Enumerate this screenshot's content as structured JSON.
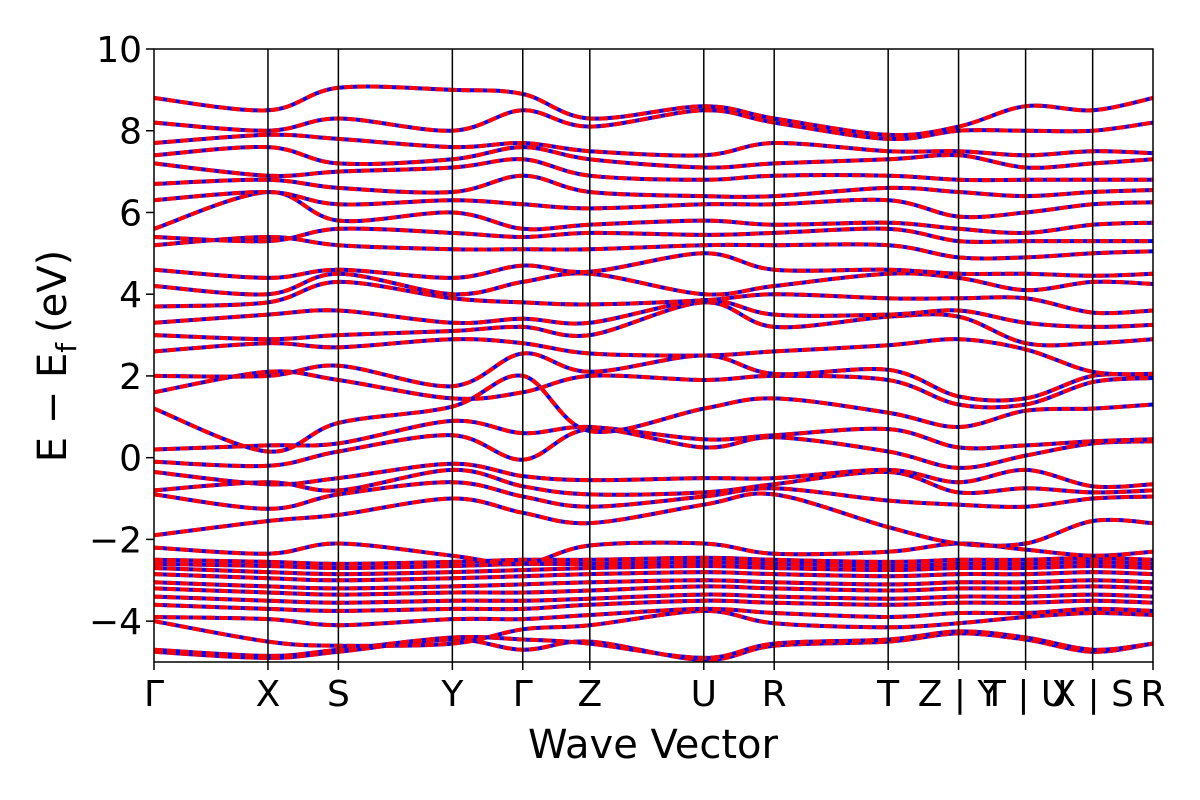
{
  "chart_data": {
    "type": "line",
    "title": "",
    "xlabel": "Wave Vector",
    "ylabel_main": "E − E",
    "ylabel_sub": "f",
    "ylabel_unit": "(eV)",
    "ylim": [
      -5,
      10
    ],
    "yticks": [
      -4,
      -2,
      0,
      2,
      4,
      6,
      8,
      10
    ],
    "ytick_labels": [
      "−4",
      "−2",
      "0",
      "2",
      "4",
      "6",
      "8",
      "10"
    ],
    "xlim": [
      0,
      14.9
    ],
    "kpoints": [
      {
        "label": "Γ",
        "x": 0.0
      },
      {
        "label": "X",
        "x": 1.7
      },
      {
        "label": "S",
        "x": 2.75
      },
      {
        "label": "Y",
        "x": 4.45
      },
      {
        "label": "Γ",
        "x": 5.5
      },
      {
        "label": "Z",
        "x": 6.5
      },
      {
        "label": "U",
        "x": 8.2
      },
      {
        "label": "R",
        "x": 9.25
      },
      {
        "label": "T",
        "x": 10.95
      },
      {
        "label": "Z | Y",
        "x": 12.0
      },
      {
        "label": "T | U",
        "x": 13.0
      },
      {
        "label": "X | S",
        "x": 14.0
      },
      {
        "label": "R",
        "x": 14.9
      }
    ],
    "grid": false,
    "legend": "none",
    "series": [
      {
        "style": "solid",
        "color": "#0000ff"
      },
      {
        "style": "dashed",
        "color": "#ff0000"
      }
    ],
    "bands": [
      [
        -4.75,
        -4.9,
        -4.75,
        -4.45,
        -4.7,
        -4.5,
        -4.95,
        -4.6,
        -4.5,
        -4.3,
        -4.45,
        -4.75,
        -4.55
      ],
      [
        -4.7,
        -4.85,
        -4.7,
        -4.4,
        -4.45,
        -4.55,
        -4.9,
        -4.55,
        -4.45,
        -4.25,
        -4.4,
        -4.7,
        -4.55
      ],
      [
        -4.0,
        -4.5,
        -4.6,
        -4.55,
        -4.2,
        -4.1,
        -3.75,
        -4.05,
        -4.15,
        -4.05,
        -3.9,
        -3.8,
        -3.85
      ],
      [
        -3.9,
        -3.95,
        -4.1,
        -3.95,
        -3.95,
        -3.85,
        -3.7,
        -3.8,
        -3.9,
        -3.8,
        -3.8,
        -3.7,
        -3.75
      ],
      [
        -3.6,
        -3.7,
        -3.75,
        -3.7,
        -3.7,
        -3.6,
        -3.5,
        -3.55,
        -3.6,
        -3.55,
        -3.55,
        -3.5,
        -3.55
      ],
      [
        -3.4,
        -3.5,
        -3.55,
        -3.5,
        -3.5,
        -3.45,
        -3.35,
        -3.4,
        -3.45,
        -3.4,
        -3.4,
        -3.35,
        -3.4
      ],
      [
        -3.2,
        -3.3,
        -3.35,
        -3.3,
        -3.3,
        -3.25,
        -3.15,
        -3.2,
        -3.25,
        -3.2,
        -3.2,
        -3.15,
        -3.2
      ],
      [
        -3.05,
        -3.15,
        -3.2,
        -3.15,
        -3.1,
        -3.05,
        -3.0,
        -3.05,
        -3.1,
        -3.05,
        -3.05,
        -3.0,
        -3.05
      ],
      [
        -2.85,
        -2.95,
        -3.0,
        -2.95,
        -2.9,
        -2.85,
        -2.8,
        -2.85,
        -2.9,
        -2.85,
        -2.85,
        -2.8,
        -2.85
      ],
      [
        -2.7,
        -2.8,
        -2.85,
        -2.8,
        -2.75,
        -2.7,
        -2.65,
        -2.7,
        -2.75,
        -2.7,
        -2.7,
        -2.65,
        -2.7
      ],
      [
        -2.6,
        -2.65,
        -2.7,
        -2.65,
        -2.6,
        -2.6,
        -2.55,
        -2.6,
        -2.65,
        -2.6,
        -2.6,
        -2.55,
        -2.6
      ],
      [
        -2.5,
        -2.55,
        -2.6,
        -2.55,
        -2.5,
        -2.5,
        -2.45,
        -2.5,
        -2.55,
        -2.5,
        -2.5,
        -2.45,
        -2.5
      ],
      [
        -2.2,
        -2.35,
        -2.1,
        -2.4,
        -2.6,
        -2.15,
        -2.1,
        -2.35,
        -2.3,
        -2.1,
        -2.25,
        -2.4,
        -2.3
      ],
      [
        -1.9,
        -1.55,
        -1.4,
        -1.0,
        -1.35,
        -1.6,
        -1.15,
        -0.9,
        -1.7,
        -2.1,
        -2.1,
        -1.55,
        -1.6
      ],
      [
        -0.9,
        -1.25,
        -0.9,
        -0.6,
        -0.95,
        -1.2,
        -0.95,
        -0.75,
        -1.05,
        -1.15,
        -1.2,
        -1.0,
        -0.95
      ],
      [
        -0.8,
        -0.6,
        -0.8,
        -0.3,
        -0.7,
        -0.9,
        -0.85,
        -0.65,
        -0.35,
        -0.85,
        -0.75,
        -0.85,
        -0.8
      ],
      [
        -0.35,
        -0.65,
        -0.5,
        -0.15,
        -0.45,
        -0.55,
        -0.5,
        -0.5,
        -0.3,
        -0.6,
        -0.3,
        -0.7,
        -0.65
      ],
      [
        -0.1,
        -0.2,
        0.15,
        0.55,
        -0.05,
        0.7,
        0.25,
        0.5,
        0.15,
        -0.25,
        0.05,
        0.35,
        0.4
      ],
      [
        0.2,
        0.3,
        0.35,
        0.9,
        0.6,
        0.75,
        0.45,
        0.55,
        0.7,
        0.25,
        0.3,
        0.4,
        0.45
      ],
      [
        1.2,
        0.15,
        0.85,
        1.25,
        2.0,
        0.65,
        1.2,
        1.45,
        1.1,
        0.75,
        1.15,
        1.2,
        1.3
      ],
      [
        1.6,
        2.1,
        1.9,
        1.45,
        1.6,
        2.0,
        1.9,
        2.0,
        1.9,
        1.3,
        1.3,
        1.85,
        1.95
      ],
      [
        2.0,
        2.0,
        2.25,
        1.75,
        2.55,
        2.1,
        2.5,
        2.05,
        2.15,
        1.5,
        1.45,
        2.0,
        2.0
      ],
      [
        2.6,
        2.8,
        2.7,
        2.9,
        2.8,
        2.55,
        2.5,
        2.6,
        2.75,
        2.9,
        2.65,
        2.1,
        2.05
      ],
      [
        3.0,
        2.9,
        3.0,
        3.1,
        3.2,
        3.0,
        3.8,
        3.2,
        3.45,
        3.45,
        2.8,
        2.8,
        2.9
      ],
      [
        3.3,
        3.5,
        3.6,
        3.3,
        3.4,
        3.3,
        3.85,
        3.5,
        3.5,
        3.6,
        3.3,
        3.2,
        3.25
      ],
      [
        3.7,
        3.8,
        4.3,
        3.9,
        3.8,
        3.75,
        3.85,
        4.0,
        3.9,
        3.9,
        3.9,
        3.55,
        3.6
      ],
      [
        4.2,
        4.0,
        4.5,
        4.0,
        4.3,
        4.5,
        4.0,
        4.2,
        4.5,
        4.4,
        4.1,
        4.3,
        4.25
      ],
      [
        4.6,
        4.4,
        4.6,
        4.4,
        4.7,
        4.55,
        5.0,
        4.6,
        4.6,
        4.5,
        4.5,
        4.45,
        4.5
      ],
      [
        5.2,
        5.4,
        5.2,
        5.1,
        5.1,
        5.1,
        5.2,
        5.2,
        5.2,
        4.9,
        4.9,
        5.0,
        5.05
      ],
      [
        5.4,
        5.3,
        5.6,
        5.5,
        5.4,
        5.5,
        5.45,
        5.5,
        5.6,
        5.3,
        5.3,
        5.3,
        5.3
      ],
      [
        5.6,
        6.5,
        5.8,
        6.0,
        5.6,
        5.7,
        5.8,
        5.7,
        5.75,
        5.6,
        5.5,
        5.7,
        5.75
      ],
      [
        6.3,
        6.5,
        6.2,
        6.3,
        6.2,
        6.1,
        6.2,
        6.2,
        6.3,
        5.9,
        6.0,
        6.2,
        6.25
      ],
      [
        6.7,
        6.8,
        6.6,
        6.5,
        6.9,
        6.5,
        6.4,
        6.4,
        6.6,
        6.5,
        6.4,
        6.5,
        6.55
      ],
      [
        7.2,
        6.9,
        7.0,
        7.1,
        7.3,
        6.9,
        6.8,
        6.9,
        6.9,
        6.8,
        6.8,
        6.8,
        6.8
      ],
      [
        7.4,
        7.6,
        7.2,
        7.3,
        7.6,
        7.3,
        7.1,
        7.2,
        7.3,
        7.4,
        7.1,
        7.2,
        7.3
      ],
      [
        7.7,
        7.9,
        7.8,
        7.6,
        7.7,
        7.5,
        7.4,
        7.7,
        7.5,
        7.5,
        7.4,
        7.5,
        7.45
      ],
      [
        8.2,
        8.0,
        8.3,
        8.0,
        8.5,
        8.1,
        8.5,
        8.2,
        7.8,
        8.0,
        8.0,
        8.0,
        8.2
      ],
      [
        8.8,
        8.5,
        9.05,
        9.0,
        8.9,
        8.3,
        8.6,
        8.3,
        7.9,
        8.1,
        8.6,
        8.5,
        8.8
      ]
    ]
  }
}
